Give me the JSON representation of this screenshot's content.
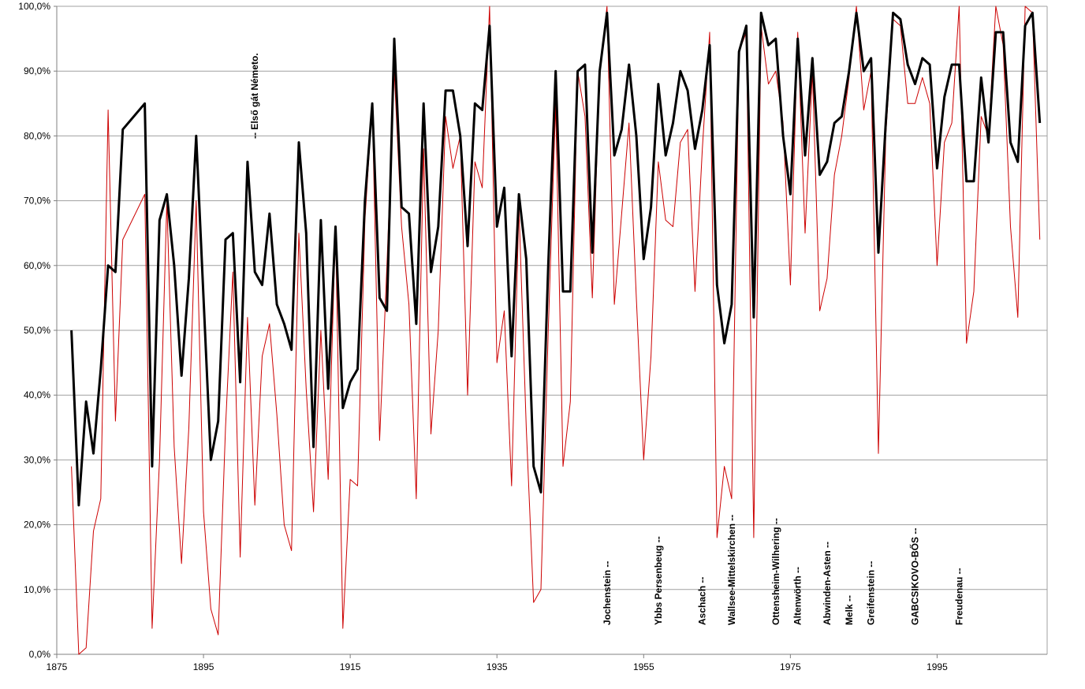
{
  "chart_data": {
    "type": "line",
    "xlim": [
      1875,
      2010
    ],
    "ylim": [
      0,
      100
    ],
    "x_ticks": [
      1875,
      1895,
      1915,
      1935,
      1955,
      1975,
      1995
    ],
    "y_ticks": [
      "0,0%",
      "10,0%",
      "20,0%",
      "30,0%",
      "40,0%",
      "50,0%",
      "60,0%",
      "70,0%",
      "80,0%",
      "90,0%",
      "100,0%"
    ],
    "grid": "horizontal",
    "series": [
      {
        "color": "#cc0000",
        "stroke": "thin",
        "points": [
          [
            1877,
            29
          ],
          [
            1878,
            0
          ],
          [
            1879,
            1
          ],
          [
            1880,
            19
          ],
          [
            1881,
            24
          ],
          [
            1882,
            84
          ],
          [
            1883,
            36
          ],
          [
            1884,
            64
          ],
          [
            1887,
            71
          ],
          [
            1888,
            4
          ],
          [
            1889,
            30
          ],
          [
            1890,
            70
          ],
          [
            1891,
            32
          ],
          [
            1892,
            14
          ],
          [
            1893,
            35
          ],
          [
            1894,
            70
          ],
          [
            1895,
            22
          ],
          [
            1896,
            7
          ],
          [
            1897,
            3
          ],
          [
            1898,
            35
          ],
          [
            1899,
            59
          ],
          [
            1900,
            15
          ],
          [
            1901,
            52
          ],
          [
            1902,
            23
          ],
          [
            1903,
            46
          ],
          [
            1904,
            51
          ],
          [
            1905,
            37
          ],
          [
            1906,
            20
          ],
          [
            1907,
            16
          ],
          [
            1908,
            65
          ],
          [
            1909,
            41
          ],
          [
            1910,
            22
          ],
          [
            1911,
            50
          ],
          [
            1912,
            27
          ],
          [
            1913,
            66
          ],
          [
            1914,
            4
          ],
          [
            1915,
            27
          ],
          [
            1916,
            26
          ],
          [
            1917,
            67
          ],
          [
            1918,
            85
          ],
          [
            1919,
            33
          ],
          [
            1920,
            60
          ],
          [
            1921,
            90
          ],
          [
            1922,
            66
          ],
          [
            1923,
            54
          ],
          [
            1924,
            24
          ],
          [
            1925,
            78
          ],
          [
            1926,
            34
          ],
          [
            1927,
            50
          ],
          [
            1928,
            83
          ],
          [
            1929,
            75
          ],
          [
            1930,
            80
          ],
          [
            1931,
            40
          ],
          [
            1932,
            76
          ],
          [
            1933,
            72
          ],
          [
            1934,
            100
          ],
          [
            1935,
            45
          ],
          [
            1936,
            53
          ],
          [
            1937,
            26
          ],
          [
            1938,
            69
          ],
          [
            1939,
            35
          ],
          [
            1940,
            8
          ],
          [
            1941,
            10
          ],
          [
            1942,
            50
          ],
          [
            1943,
            85
          ],
          [
            1944,
            29
          ],
          [
            1945,
            39
          ],
          [
            1946,
            90
          ],
          [
            1947,
            83
          ],
          [
            1948,
            55
          ],
          [
            1949,
            90
          ],
          [
            1950,
            100
          ],
          [
            1951,
            54
          ],
          [
            1952,
            68
          ],
          [
            1953,
            82
          ],
          [
            1954,
            55
          ],
          [
            1955,
            30
          ],
          [
            1956,
            46
          ],
          [
            1957,
            76
          ],
          [
            1958,
            67
          ],
          [
            1959,
            66
          ],
          [
            1960,
            79
          ],
          [
            1961,
            81
          ],
          [
            1962,
            56
          ],
          [
            1963,
            78
          ],
          [
            1964,
            96
          ],
          [
            1965,
            18
          ],
          [
            1966,
            29
          ],
          [
            1967,
            24
          ],
          [
            1968,
            93
          ],
          [
            1969,
            96
          ],
          [
            1970,
            18
          ],
          [
            1971,
            97
          ],
          [
            1972,
            88
          ],
          [
            1973,
            90
          ],
          [
            1974,
            82
          ],
          [
            1975,
            57
          ],
          [
            1976,
            96
          ],
          [
            1977,
            65
          ],
          [
            1978,
            90
          ],
          [
            1979,
            53
          ],
          [
            1980,
            58
          ],
          [
            1981,
            74
          ],
          [
            1982,
            80
          ],
          [
            1983,
            89
          ],
          [
            1984,
            100
          ],
          [
            1985,
            84
          ],
          [
            1986,
            90
          ],
          [
            1987,
            31
          ],
          [
            1988,
            80
          ],
          [
            1989,
            98
          ],
          [
            1990,
            97
          ],
          [
            1991,
            85
          ],
          [
            1992,
            85
          ],
          [
            1993,
            89
          ],
          [
            1994,
            85
          ],
          [
            1995,
            60
          ],
          [
            1996,
            79
          ],
          [
            1997,
            82
          ],
          [
            1998,
            100
          ],
          [
            1999,
            48
          ],
          [
            2000,
            56
          ],
          [
            2001,
            83
          ],
          [
            2002,
            80
          ],
          [
            2003,
            100
          ],
          [
            2004,
            94
          ],
          [
            2005,
            66
          ],
          [
            2006,
            52
          ],
          [
            2007,
            100
          ],
          [
            2008,
            99
          ],
          [
            2009,
            64
          ]
        ]
      },
      {
        "color": "#000000",
        "stroke": "thick",
        "points": [
          [
            1877,
            50
          ],
          [
            1878,
            23
          ],
          [
            1879,
            39
          ],
          [
            1880,
            31
          ],
          [
            1881,
            44
          ],
          [
            1882,
            60
          ],
          [
            1883,
            59
          ],
          [
            1884,
            81
          ],
          [
            1887,
            85
          ],
          [
            1888,
            29
          ],
          [
            1889,
            67
          ],
          [
            1890,
            71
          ],
          [
            1891,
            60
          ],
          [
            1892,
            43
          ],
          [
            1893,
            58
          ],
          [
            1894,
            80
          ],
          [
            1895,
            55
          ],
          [
            1896,
            30
          ],
          [
            1897,
            36
          ],
          [
            1898,
            64
          ],
          [
            1899,
            65
          ],
          [
            1900,
            42
          ],
          [
            1901,
            76
          ],
          [
            1902,
            59
          ],
          [
            1903,
            57
          ],
          [
            1904,
            68
          ],
          [
            1905,
            54
          ],
          [
            1906,
            51
          ],
          [
            1907,
            47
          ],
          [
            1908,
            79
          ],
          [
            1909,
            65
          ],
          [
            1910,
            32
          ],
          [
            1911,
            67
          ],
          [
            1912,
            41
          ],
          [
            1913,
            66
          ],
          [
            1914,
            38
          ],
          [
            1915,
            42
          ],
          [
            1916,
            44
          ],
          [
            1917,
            70
          ],
          [
            1918,
            85
          ],
          [
            1919,
            55
          ],
          [
            1920,
            53
          ],
          [
            1921,
            95
          ],
          [
            1922,
            69
          ],
          [
            1923,
            68
          ],
          [
            1924,
            51
          ],
          [
            1925,
            85
          ],
          [
            1926,
            59
          ],
          [
            1927,
            66
          ],
          [
            1928,
            87
          ],
          [
            1929,
            87
          ],
          [
            1930,
            80
          ],
          [
            1931,
            63
          ],
          [
            1932,
            85
          ],
          [
            1933,
            84
          ],
          [
            1934,
            97
          ],
          [
            1935,
            66
          ],
          [
            1936,
            72
          ],
          [
            1937,
            46
          ],
          [
            1938,
            71
          ],
          [
            1939,
            61
          ],
          [
            1940,
            29
          ],
          [
            1941,
            25
          ],
          [
            1942,
            60
          ],
          [
            1943,
            90
          ],
          [
            1944,
            56
          ],
          [
            1945,
            56
          ],
          [
            1946,
            90
          ],
          [
            1947,
            91
          ],
          [
            1948,
            62
          ],
          [
            1949,
            90
          ],
          [
            1950,
            99
          ],
          [
            1951,
            77
          ],
          [
            1952,
            81
          ],
          [
            1953,
            91
          ],
          [
            1954,
            80
          ],
          [
            1955,
            61
          ],
          [
            1956,
            69
          ],
          [
            1957,
            88
          ],
          [
            1958,
            77
          ],
          [
            1959,
            82
          ],
          [
            1960,
            90
          ],
          [
            1961,
            87
          ],
          [
            1962,
            78
          ],
          [
            1963,
            84
          ],
          [
            1964,
            94
          ],
          [
            1965,
            57
          ],
          [
            1966,
            48
          ],
          [
            1967,
            54
          ],
          [
            1968,
            93
          ],
          [
            1969,
            97
          ],
          [
            1970,
            52
          ],
          [
            1971,
            99
          ],
          [
            1972,
            94
          ],
          [
            1973,
            95
          ],
          [
            1974,
            80
          ],
          [
            1975,
            71
          ],
          [
            1976,
            95
          ],
          [
            1977,
            77
          ],
          [
            1978,
            92
          ],
          [
            1979,
            74
          ],
          [
            1980,
            76
          ],
          [
            1981,
            82
          ],
          [
            1982,
            83
          ],
          [
            1983,
            90
          ],
          [
            1984,
            99
          ],
          [
            1985,
            90
          ],
          [
            1986,
            92
          ],
          [
            1987,
            62
          ],
          [
            1988,
            82
          ],
          [
            1989,
            99
          ],
          [
            1990,
            98
          ],
          [
            1991,
            91
          ],
          [
            1992,
            88
          ],
          [
            1993,
            92
          ],
          [
            1994,
            91
          ],
          [
            1995,
            75
          ],
          [
            1996,
            86
          ],
          [
            1997,
            91
          ],
          [
            1998,
            91
          ],
          [
            1999,
            73
          ],
          [
            2000,
            73
          ],
          [
            2001,
            89
          ],
          [
            2002,
            79
          ],
          [
            2003,
            96
          ],
          [
            2004,
            96
          ],
          [
            2005,
            79
          ],
          [
            2006,
            76
          ],
          [
            2007,
            97
          ],
          [
            2008,
            99
          ],
          [
            2009,
            82
          ]
        ]
      }
    ],
    "annotations": [
      {
        "text": "-- Első gát Németo.",
        "x": 1902,
        "anchor": "top"
      },
      {
        "text": "Jochenstein --",
        "x": 1950,
        "anchor": "bottom"
      },
      {
        "text": "Ybbs Persenbeug --",
        "x": 1957,
        "anchor": "bottom"
      },
      {
        "text": "Aschach --",
        "x": 1963,
        "anchor": "bottom"
      },
      {
        "text": "Wallsee-Mittelskirchen --",
        "x": 1967,
        "anchor": "bottom"
      },
      {
        "text": "Ottensheim-Wilhering --",
        "x": 1973,
        "anchor": "bottom"
      },
      {
        "text": "Altenwörth --",
        "x": 1976,
        "anchor": "bottom"
      },
      {
        "text": "Abwinden-Asten --",
        "x": 1980,
        "anchor": "bottom"
      },
      {
        "text": "Melk --",
        "x": 1983,
        "anchor": "bottom"
      },
      {
        "text": "Greifenstein --",
        "x": 1986,
        "anchor": "bottom"
      },
      {
        "text": "GABCSIKOVO-BŐS --",
        "x": 1992,
        "anchor": "bottom"
      },
      {
        "text": "Freudenau --",
        "x": 1998,
        "anchor": "bottom"
      }
    ]
  }
}
